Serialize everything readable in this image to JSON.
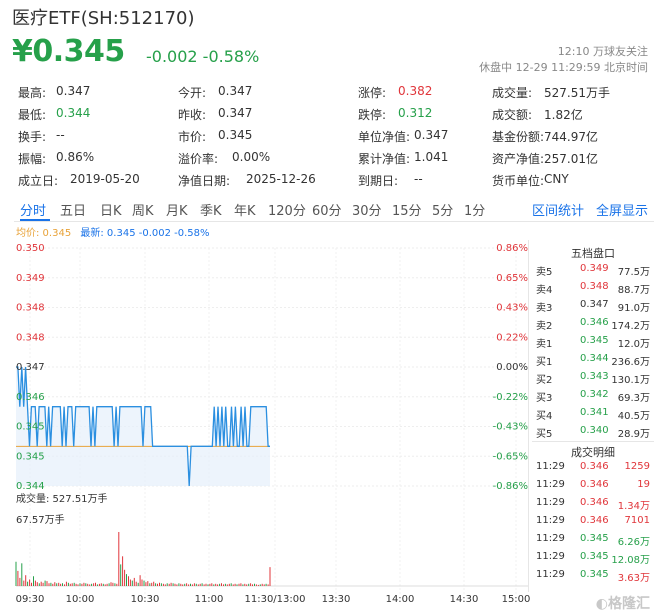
{
  "header": {
    "title": "医疗ETF(SH:512170)",
    "price": "¥0.345",
    "change": "-0.002 -0.58%",
    "follow": "12:10 万球友关注",
    "status": "休盘中 12-29 11:29:59 北京时间"
  },
  "stats": [
    [
      {
        "label": "最高:",
        "value": "0.347",
        "color": "default"
      },
      {
        "label": "今开:",
        "value": "0.347",
        "color": "default"
      },
      {
        "label": "涨停:",
        "value": "0.382",
        "color": "red"
      },
      {
        "label": "成交量:",
        "value": "527.51万手",
        "color": "default"
      }
    ],
    [
      {
        "label": "最低:",
        "value": "0.344",
        "color": "green"
      },
      {
        "label": "昨收:",
        "value": "0.347",
        "color": "default"
      },
      {
        "label": "跌停:",
        "value": "0.312",
        "color": "green"
      },
      {
        "label": "成交额:",
        "value": "1.82亿",
        "color": "default"
      }
    ],
    [
      {
        "label": "换手:",
        "value": "--",
        "color": "default"
      },
      {
        "label": "市价:",
        "value": "0.345",
        "color": "default"
      },
      {
        "label": "单位净值:",
        "value": "0.347",
        "color": "default"
      },
      {
        "label": "基金份额:",
        "value": "744.97亿",
        "color": "default"
      }
    ],
    [
      {
        "label": "振幅:",
        "value": "0.86%",
        "color": "default"
      },
      {
        "label": "溢价率:",
        "value": "0.00%",
        "color": "default"
      },
      {
        "label": "累计净值:",
        "value": "1.041",
        "color": "default"
      },
      {
        "label": "资产净值:",
        "value": "257.01亿",
        "color": "default"
      }
    ],
    [
      {
        "label": "成立日:",
        "value": "2019-05-20",
        "color": "default"
      },
      {
        "label": "净值日期:",
        "value": "2025-12-26",
        "color": "default"
      },
      {
        "label": "到期日:",
        "value": "--",
        "color": "default"
      },
      {
        "label": "货币单位:",
        "value": "CNY",
        "color": "default"
      }
    ]
  ],
  "tabs": [
    "分时",
    "五日",
    "日K",
    "周K",
    "月K",
    "季K",
    "年K",
    "120分",
    "60分",
    "30分",
    "15分",
    "5分",
    "1分"
  ],
  "tab_links": [
    "区间统计",
    "全屏显示"
  ],
  "legend": {
    "avg": "均价: 0.345",
    "latest": "最新: 0.345 -0.002 -0.58%"
  },
  "volume": {
    "title": "成交量: 527.51万手",
    "max": "67.57万手"
  },
  "depth": {
    "title": "五档盘口",
    "asks": [
      {
        "label": "卖5",
        "price": "0.349",
        "vol": "77.5万"
      },
      {
        "label": "卖4",
        "price": "0.348",
        "vol": "88.7万"
      },
      {
        "label": "卖3",
        "price": "0.347",
        "vol": "91.0万"
      },
      {
        "label": "卖2",
        "price": "0.346",
        "vol": "174.2万"
      },
      {
        "label": "卖1",
        "price": "0.345",
        "vol": "12.0万"
      }
    ],
    "bids": [
      {
        "label": "买1",
        "price": "0.344",
        "vol": "236.6万"
      },
      {
        "label": "买2",
        "price": "0.343",
        "vol": "130.1万"
      },
      {
        "label": "买3",
        "price": "0.342",
        "vol": "69.3万"
      },
      {
        "label": "买4",
        "price": "0.341",
        "vol": "40.5万"
      },
      {
        "label": "买5",
        "price": "0.340",
        "vol": "28.9万"
      }
    ],
    "trade_title": "成交明细",
    "trades": [
      {
        "time": "11:29",
        "price": "0.346",
        "vol": "1259",
        "dir": "red"
      },
      {
        "time": "11:29",
        "price": "0.346",
        "vol": "19",
        "dir": "red"
      },
      {
        "time": "11:29",
        "price": "0.346",
        "vol": "1.34万",
        "dir": "red"
      },
      {
        "time": "11:29",
        "price": "0.346",
        "vol": "7101",
        "dir": "red"
      },
      {
        "time": "11:29",
        "price": "0.345",
        "vol": "6.26万",
        "dir": "green"
      },
      {
        "time": "11:29",
        "price": "0.345",
        "vol": "12.08万",
        "dir": "green"
      },
      {
        "time": "11:29",
        "price": "0.345",
        "vol": "3.63万",
        "dir": "red"
      }
    ]
  },
  "chart_data": {
    "type": "line",
    "y_ticks_left": [
      "0.350",
      "0.349",
      "0.348",
      "0.348",
      "0.347",
      "0.346",
      "0.345",
      "0.345",
      "0.344"
    ],
    "y_ticks_right": [
      "0.86%",
      "0.65%",
      "0.43%",
      "0.22%",
      "0.00%",
      "-0.22%",
      "-0.43%",
      "-0.65%",
      "-0.86%"
    ],
    "x_ticks": [
      "09:30",
      "10:00",
      "10:30",
      "11:00",
      "11:30/13:00",
      "13:30",
      "14:00",
      "14:30",
      "15:00"
    ],
    "ylim": [
      0.344,
      0.35
    ],
    "price": [
      0.347,
      0.347,
      0.346,
      0.347,
      0.346,
      0.347,
      0.346,
      0.345,
      0.346,
      0.346,
      0.346,
      0.345,
      0.346,
      0.346,
      0.346,
      0.346,
      0.345,
      0.346,
      0.345,
      0.346,
      0.346,
      0.346,
      0.346,
      0.346,
      0.345,
      0.346,
      0.345,
      0.346,
      0.346,
      0.346,
      0.345,
      0.346,
      0.346,
      0.346,
      0.346,
      0.346,
      0.346,
      0.346,
      0.346,
      0.345,
      0.346,
      0.345,
      0.346,
      0.346,
      0.346,
      0.346,
      0.346,
      0.346,
      0.346,
      0.346,
      0.346,
      0.345,
      0.346,
      0.345,
      0.346,
      0.346,
      0.346,
      0.346,
      0.346,
      0.346,
      0.346,
      0.346,
      0.346,
      0.346,
      0.346,
      0.346,
      0.345,
      0.346,
      0.346,
      0.346,
      0.346,
      0.345,
      0.345,
      0.345,
      0.345,
      0.345,
      0.345,
      0.345,
      0.345,
      0.345,
      0.345,
      0.345,
      0.345,
      0.345,
      0.345,
      0.345,
      0.345,
      0.345,
      0.345,
      0.345,
      0.344,
      0.345,
      0.345,
      0.345,
      0.345,
      0.345,
      0.345,
      0.345,
      0.345,
      0.345,
      0.345,
      0.345,
      0.345,
      0.346,
      0.345,
      0.346,
      0.345,
      0.346,
      0.345,
      0.346,
      0.345,
      0.345,
      0.346,
      0.345,
      0.346,
      0.345,
      0.345,
      0.346,
      0.345,
      0.346,
      0.345,
      0.345,
      0.346,
      0.346,
      0.346,
      0.346,
      0.346,
      0.346,
      0.346,
      0.346,
      0.346,
      0.345,
      0.345
    ],
    "avg": 0.345,
    "prev_close": 0.347,
    "volume_max": 67.57
  }
}
